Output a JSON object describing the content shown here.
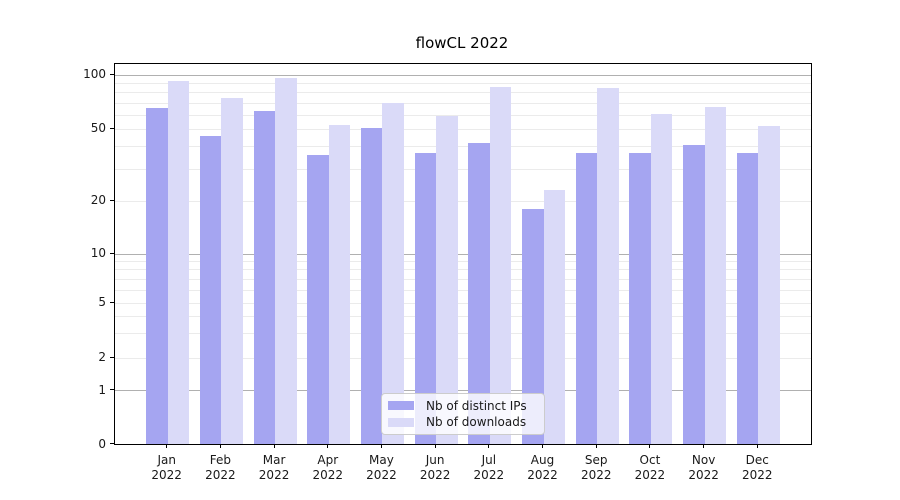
{
  "chart_data": {
    "type": "bar",
    "title": "flowCL 2022",
    "categories": [
      {
        "month": "Jan",
        "year": "2022"
      },
      {
        "month": "Feb",
        "year": "2022"
      },
      {
        "month": "Mar",
        "year": "2022"
      },
      {
        "month": "Apr",
        "year": "2022"
      },
      {
        "month": "May",
        "year": "2022"
      },
      {
        "month": "Jun",
        "year": "2022"
      },
      {
        "month": "Jul",
        "year": "2022"
      },
      {
        "month": "Aug",
        "year": "2022"
      },
      {
        "month": "Sep",
        "year": "2022"
      },
      {
        "month": "Oct",
        "year": "2022"
      },
      {
        "month": "Nov",
        "year": "2022"
      },
      {
        "month": "Dec",
        "year": "2022"
      }
    ],
    "series": [
      {
        "name": "Nb of distinct IPs",
        "color": "#a5a5f1",
        "values": [
          66,
          46,
          63,
          36,
          51,
          37,
          42,
          18,
          37,
          37,
          41,
          37
        ]
      },
      {
        "name": "Nb of downloads",
        "color": "#dadaf8",
        "values": [
          93,
          75,
          96,
          53,
          70,
          59,
          86,
          23,
          85,
          61,
          67,
          52
        ]
      }
    ],
    "xlabel": "",
    "ylabel": "",
    "yscale": "symlog",
    "yticks": [
      100,
      50,
      20,
      10,
      5,
      2,
      1,
      0
    ],
    "ylim": [
      0,
      116
    ],
    "grid": "horizontal",
    "legend_position": "lower-center",
    "colors": {
      "major_grid": "#b0b0b0",
      "minor_grid": "#ebebeb",
      "spine": "#000000",
      "background": "#ffffff"
    }
  }
}
